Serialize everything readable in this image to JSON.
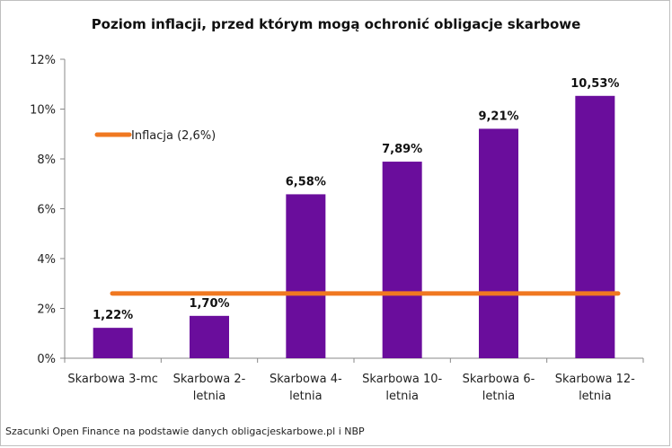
{
  "chart_data": {
    "type": "bar",
    "title": "Poziom inflacji, przed którym mogą ochronić obligacje skarbowe",
    "categories": [
      [
        "Skarbowa 3-mc"
      ],
      [
        "Skarbowa 2-",
        "letnia"
      ],
      [
        "Skarbowa 4-",
        "letnia"
      ],
      [
        "Skarbowa 10-",
        "letnia"
      ],
      [
        "Skarbowa 6-",
        "letnia"
      ],
      [
        "Skarbowa 12-",
        "letnia"
      ]
    ],
    "values": [
      1.22,
      1.7,
      6.58,
      7.89,
      9.21,
      10.53
    ],
    "data_labels": [
      "1,22%",
      "1,70%",
      "6,58%",
      "7,89%",
      "9,21%",
      "10,53%"
    ],
    "y_ticks": [
      "0%",
      "2%",
      "4%",
      "6%",
      "8%",
      "10%",
      "12%"
    ],
    "ylim": [
      0,
      12
    ],
    "bar_color": "#6a0d9c",
    "reference_line": {
      "name": "Inflacja (2,6%)",
      "value": 2.6,
      "color": "#f07820"
    },
    "legend_position": "upper-left",
    "grid": false
  },
  "source_note": "Szacunki Open Finance na podstawie danych obligacjeskarbowe.pl i NBP"
}
